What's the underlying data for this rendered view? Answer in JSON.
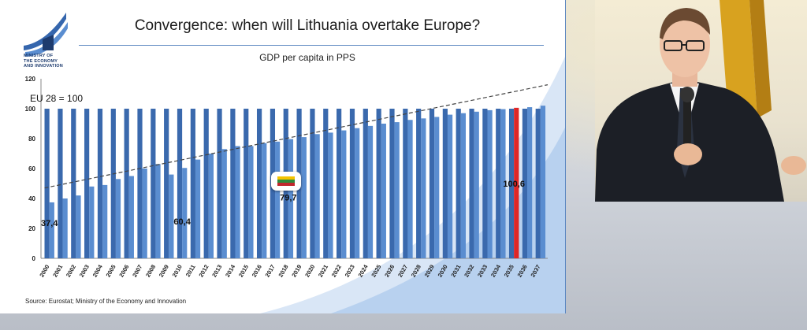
{
  "slide": {
    "title": "Convergence: when will Lithuania overtake Europe?",
    "logo_text_lines": [
      "MINISTRY OF",
      "THE ECONOMY",
      "AND INNOVATION"
    ],
    "eu_reference_label": "EU 28 = 100",
    "source": "Source: Eurostat; Ministry of the Economy and Innovation",
    "flag_icon": "lithuania-flag-icon"
  },
  "colors": {
    "eu_bar": "#3a69ad",
    "lt_bar": "#5a8dd0",
    "highlight_bar": "#e02626",
    "trend_line": "#444444",
    "flag_yellow": "#f4c300",
    "flag_green": "#2f8a3e",
    "flag_red": "#c1272d"
  },
  "chart_data": {
    "type": "bar",
    "title": "GDP per capita in PPS",
    "xlabel": "",
    "ylabel": "",
    "ylim": [
      0,
      120
    ],
    "yticks": [
      0,
      20,
      40,
      60,
      80,
      100,
      120
    ],
    "grid": false,
    "categories": [
      "2000",
      "2001",
      "2002",
      "2003",
      "2004",
      "2005",
      "2006",
      "2007",
      "2008",
      "2009",
      "2010",
      "2011",
      "2012",
      "2013",
      "2014",
      "2015",
      "2016",
      "2017",
      "2018",
      "2019",
      "2020",
      "2021",
      "2022",
      "2023",
      "2024",
      "2025",
      "2026",
      "2027",
      "2028",
      "2029",
      "2030",
      "2031",
      "2032",
      "2033",
      "2034",
      "2035",
      "2036",
      "2037"
    ],
    "series": [
      {
        "values": [
          100,
          100,
          100,
          100,
          100,
          100,
          100,
          100,
          100,
          100,
          100,
          100,
          100,
          100,
          100,
          100,
          100,
          100,
          100,
          100,
          100,
          100,
          100,
          100,
          100,
          100,
          100,
          100,
          100,
          100,
          100,
          100,
          100,
          100,
          100,
          100,
          100,
          100
        ]
      },
      {
        "values": [
          37.4,
          40,
          42,
          48,
          49,
          53,
          55,
          60,
          63,
          56,
          60.4,
          66,
          70,
          73,
          75,
          75,
          77,
          78,
          79.7,
          81,
          83,
          84,
          85.5,
          87,
          88.5,
          90,
          91,
          92.5,
          93.5,
          94.5,
          96,
          97,
          98,
          99,
          99.7,
          100.6,
          101,
          102
        ],
        "highlight_index": 35
      }
    ],
    "data_labels": [
      {
        "category": "2000",
        "text": "37,4"
      },
      {
        "category": "2010",
        "text": "60,4"
      },
      {
        "category": "2018",
        "text": "79,7"
      },
      {
        "category": "2035",
        "text": "100,6"
      }
    ],
    "trendline": {
      "x": [
        "2000",
        "2037"
      ],
      "y": [
        47,
        116
      ],
      "style": "dashed"
    }
  }
}
